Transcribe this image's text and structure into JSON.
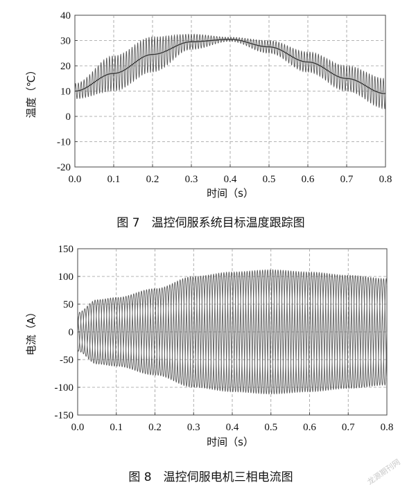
{
  "chart_data": [
    {
      "type": "line",
      "caption": "图 7　温控伺服系统目标温度跟踪图",
      "xlabel": "时间（s）",
      "ylabel": "温度（℃）",
      "xlim": [
        0,
        0.8
      ],
      "ylim": [
        -20,
        40
      ],
      "xticks": [
        "0.0",
        "0.1",
        "0.2",
        "0.3",
        "0.4",
        "0.5",
        "0.6",
        "0.7",
        "0.8"
      ],
      "yticks": [
        "-20",
        "-10",
        "0",
        "10",
        "20",
        "30",
        "40"
      ],
      "grid": true,
      "series": [
        {
          "role": "target",
          "points": [
            [
              0.0,
              10.0
            ],
            [
              0.1,
              17.0
            ],
            [
              0.2,
              24.5
            ],
            [
              0.3,
              29.5
            ],
            [
              0.4,
              30.5
            ],
            [
              0.5,
              27.5
            ],
            [
              0.6,
              21.5
            ],
            [
              0.7,
              15.0
            ],
            [
              0.8,
              9.0
            ]
          ]
        },
        {
          "role": "actual-oscillating",
          "amplitude_envelope": [
            [
              0.0,
              3.0
            ],
            [
              0.1,
              7.0
            ],
            [
              0.2,
              7.0
            ],
            [
              0.3,
              3.0
            ],
            [
              0.4,
              0.8
            ],
            [
              0.5,
              2.5
            ],
            [
              0.6,
              4.0
            ],
            [
              0.7,
              5.0
            ],
            [
              0.8,
              6.0
            ]
          ],
          "cycles": 110
        }
      ]
    },
    {
      "type": "line",
      "caption": "图 8　温控伺服电机三相电流图",
      "xlabel": "时间（s）",
      "ylabel": "电流（A）",
      "xlim": [
        0,
        0.8
      ],
      "ylim": [
        -150,
        150
      ],
      "xticks": [
        "0.0",
        "0.1",
        "0.2",
        "0.3",
        "0.4",
        "0.5",
        "0.6",
        "0.7",
        "0.8"
      ],
      "yticks": [
        "-150",
        "-100",
        "-50",
        "0",
        "50",
        "100",
        "150"
      ],
      "grid": true,
      "series": [
        {
          "role": "three-phase-current",
          "phases": 3,
          "cycles": 40,
          "amplitude_envelope": [
            [
              0.0,
              35
            ],
            [
              0.05,
              58
            ],
            [
              0.1,
              62
            ],
            [
              0.2,
              78
            ],
            [
              0.3,
              100
            ],
            [
              0.4,
              108
            ],
            [
              0.5,
              112
            ],
            [
              0.6,
              108
            ],
            [
              0.7,
              102
            ],
            [
              0.8,
              96
            ]
          ]
        }
      ]
    }
  ],
  "watermark": "龙源期刊网"
}
